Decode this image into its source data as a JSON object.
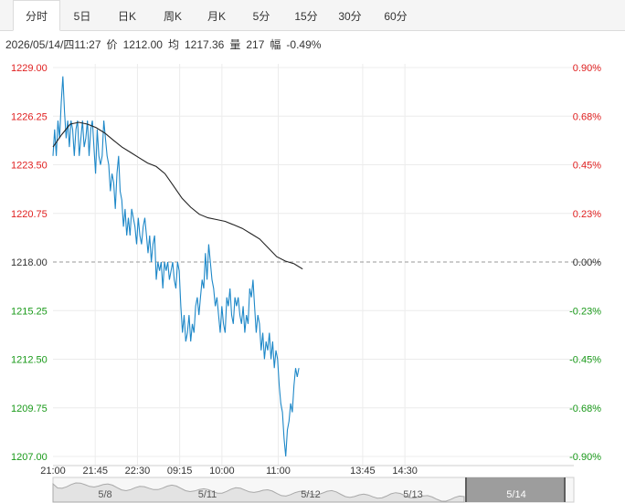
{
  "tabs": [
    {
      "label": "分时",
      "active": true
    },
    {
      "label": "5日"
    },
    {
      "label": "日K"
    },
    {
      "label": "周K"
    },
    {
      "label": "月K"
    },
    {
      "label": "5分"
    },
    {
      "label": "15分"
    },
    {
      "label": "30分"
    },
    {
      "label": "60分"
    }
  ],
  "info": {
    "datetime": "2026/05/14/四11:27",
    "price_label": "价",
    "price": "1212.00",
    "avg_label": "均",
    "avg": "1217.36",
    "vol_label": "量",
    "vol": "217",
    "change_label": "幅",
    "change": "-0.49%"
  },
  "colors": {
    "up": "#e02020",
    "down": "#1a9a1a",
    "neutral": "#333333",
    "price_line": "#1e88c8",
    "avg_line": "#222222"
  },
  "chart_data": {
    "type": "line",
    "base_price": 1218.0,
    "ylim": [
      1207.0,
      1229.0
    ],
    "y_ticks": [
      "1229.00",
      "1226.25",
      "1223.50",
      "1220.75",
      "1218.00",
      "1215.25",
      "1212.50",
      "1209.75",
      "1207.00"
    ],
    "y_ticks_right": [
      "0.90%",
      "0.68%",
      "0.45%",
      "0.23%",
      "0.00%",
      "-0.23%",
      "-0.45%",
      "-0.68%",
      "-0.90%"
    ],
    "x_ticks": [
      "21:00",
      "21:45",
      "22:30",
      "09:15",
      "10:00",
      "11:00",
      "13:45",
      "14:30"
    ],
    "price_series": [
      1224.0,
      1225.5,
      1224.0,
      1226.0,
      1225.0,
      1227.0,
      1228.5,
      1226.5,
      1225.0,
      1226.0,
      1224.5,
      1226.0,
      1225.5,
      1224.0,
      1225.5,
      1226.0,
      1224.0,
      1225.0,
      1226.0,
      1224.5,
      1225.0,
      1226.0,
      1224.0,
      1225.5,
      1226.0,
      1224.5,
      1223.0,
      1225.5,
      1224.0,
      1223.5,
      1224.0,
      1226.0,
      1225.0,
      1224.0,
      1223.5,
      1222.0,
      1223.0,
      1222.5,
      1221.0,
      1223.0,
      1224.0,
      1222.0,
      1221.5,
      1220.0,
      1221.0,
      1219.5,
      1220.5,
      1219.5,
      1221.0,
      1220.5,
      1220.0,
      1219.0,
      1220.5,
      1219.5,
      1219.0,
      1220.0,
      1220.5,
      1219.5,
      1218.5,
      1219.5,
      1218.0,
      1219.0,
      1219.5,
      1217.0,
      1218.0,
      1217.5,
      1218.0,
      1216.5,
      1218.0,
      1217.5,
      1218.0,
      1217.0,
      1217.5,
      1218.0,
      1217.0,
      1216.5,
      1218.0,
      1217.5,
      1215.5,
      1214.0,
      1215.0,
      1213.5,
      1214.0,
      1215.0,
      1213.5,
      1214.5,
      1214.0,
      1215.5,
      1216.0,
      1215.0,
      1216.0,
      1217.0,
      1216.5,
      1218.5,
      1217.0,
      1219.0,
      1218.0,
      1217.0,
      1216.5,
      1215.5,
      1216.0,
      1215.0,
      1214.0,
      1215.5,
      1214.5,
      1214.0,
      1216.0,
      1215.5,
      1216.5,
      1215.0,
      1214.5,
      1216.0,
      1215.5,
      1216.0,
      1215.0,
      1214.5,
      1215.5,
      1214.0,
      1215.0,
      1214.5,
      1216.5,
      1216.0,
      1217.0,
      1215.5,
      1214.0,
      1215.0,
      1214.5,
      1213.0,
      1214.0,
      1212.5,
      1213.5,
      1213.0,
      1214.0,
      1212.5,
      1213.5,
      1212.0,
      1213.0,
      1212.5,
      1211.0,
      1210.0,
      1209.5,
      1208.0,
      1207.0,
      1208.5,
      1209.0,
      1210.0,
      1209.5,
      1211.0,
      1212.0,
      1211.5,
      1212.0
    ],
    "avg_series": [
      1224.5,
      1225.2,
      1225.8,
      1225.9,
      1225.8,
      1225.6,
      1225.3,
      1224.9,
      1224.5,
      1224.2,
      1223.9,
      1223.6,
      1223.4,
      1223.0,
      1222.3,
      1221.6,
      1221.1,
      1220.7,
      1220.5,
      1220.4,
      1220.3,
      1220.1,
      1219.9,
      1219.6,
      1219.3,
      1218.8,
      1218.3,
      1218.05,
      1217.9,
      1217.6
    ]
  },
  "bottom_strip": {
    "dates": [
      "5/8",
      "5/11",
      "5/12",
      "5/13",
      "5/14"
    ]
  }
}
